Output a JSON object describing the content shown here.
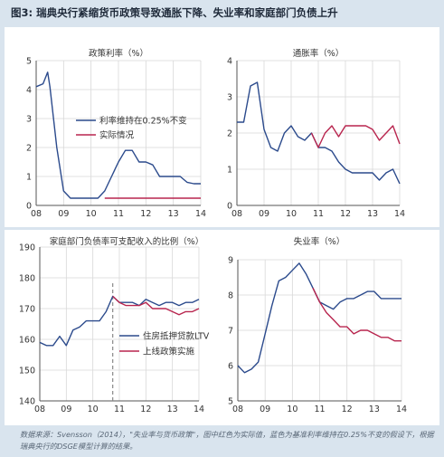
{
  "figure": {
    "title": "图3: 瑞典央行紧缩货币政策导致通胀下降、失业率和家庭部门负债上升",
    "source": "数据来源：Svensson（2014），\"失业率与货币政策\"，图中红色为实际值，蓝色为基准利率维持在0.25%不变的假设下，根据瑞典央行的DSGE模型计算的结果。"
  },
  "colors": {
    "blue": "#2b4a8c",
    "red": "#b8254e",
    "grid": "#d8d8d8",
    "axis": "#555555",
    "vline": "#888888"
  },
  "chart_data": [
    {
      "id": "policy-rate",
      "type": "line",
      "title": "政策利率（%）",
      "xlim": [
        8,
        14
      ],
      "xticks": [
        8,
        9,
        10,
        11,
        12,
        13,
        14
      ],
      "xtick_labels": [
        "08",
        "09",
        "10",
        "11",
        "12",
        "13",
        "14"
      ],
      "ylim": [
        0,
        5
      ],
      "yticks": [
        0,
        1,
        2,
        3,
        4,
        5
      ],
      "grid": true,
      "legend_position": "center",
      "series": [
        {
          "name": "利率维持在0.25%不变",
          "color": "blue",
          "x": [
            8.0,
            8.25,
            8.42,
            8.5,
            8.75,
            9.0,
            9.25,
            9.5,
            9.75,
            10.25,
            10.5,
            10.75,
            11.0,
            11.25,
            11.5,
            11.75,
            12.0,
            12.25,
            12.5,
            12.75,
            13.0,
            13.25,
            13.5,
            13.75,
            14.0
          ],
          "y": [
            4.1,
            4.2,
            4.6,
            4.1,
            2.0,
            0.5,
            0.25,
            0.25,
            0.25,
            0.25,
            0.5,
            1.0,
            1.5,
            1.9,
            1.9,
            1.5,
            1.5,
            1.4,
            1.0,
            1.0,
            1.0,
            1.0,
            0.8,
            0.75,
            0.75
          ]
        },
        {
          "name": "实际情况",
          "color": "red",
          "x": [
            10.5,
            14.0
          ],
          "y": [
            0.25,
            0.25
          ]
        }
      ]
    },
    {
      "id": "inflation",
      "type": "line",
      "title": "通胀率（%）",
      "xlim": [
        8,
        14
      ],
      "xticks": [
        8,
        9,
        10,
        11,
        12,
        13,
        14
      ],
      "xtick_labels": [
        "08",
        "09",
        "10",
        "11",
        "12",
        "13",
        "14"
      ],
      "ylim": [
        0,
        4
      ],
      "yticks": [
        0,
        1,
        2,
        3,
        4
      ],
      "grid": true,
      "series": [
        {
          "name": "",
          "color": "blue",
          "x": [
            8.0,
            8.25,
            8.5,
            8.75,
            9.0,
            9.25,
            9.5,
            9.75,
            10.0,
            10.25,
            10.5,
            10.75,
            11.0,
            11.25,
            11.5,
            11.75,
            12.0,
            12.25,
            12.5,
            12.75,
            13.0,
            13.25,
            13.5,
            13.75,
            14.0
          ],
          "y": [
            2.3,
            2.3,
            3.3,
            3.4,
            2.1,
            1.6,
            1.5,
            2.0,
            2.2,
            1.9,
            1.8,
            2.0,
            1.6,
            1.6,
            1.5,
            1.2,
            1.0,
            0.9,
            0.9,
            0.9,
            0.9,
            0.7,
            0.9,
            1.0,
            0.6
          ]
        },
        {
          "name": "",
          "color": "red",
          "x": [
            10.75,
            11.0,
            11.25,
            11.5,
            11.75,
            12.0,
            12.25,
            12.5,
            12.75,
            13.0,
            13.25,
            13.5,
            13.75,
            14.0
          ],
          "y": [
            2.0,
            1.6,
            2.0,
            2.2,
            1.9,
            2.2,
            2.2,
            2.2,
            2.2,
            2.1,
            1.8,
            2.0,
            2.2,
            1.7
          ]
        }
      ]
    },
    {
      "id": "household-debt",
      "type": "line",
      "title": "家庭部门负债率可支配收入的比例（%）",
      "xlim": [
        8,
        14
      ],
      "xticks": [
        8,
        9,
        10,
        11,
        12,
        13,
        14
      ],
      "xtick_labels": [
        "08",
        "09",
        "10",
        "11",
        "12",
        "13",
        "14"
      ],
      "ylim": [
        140,
        190
      ],
      "yticks": [
        140,
        150,
        160,
        170,
        180,
        190
      ],
      "grid": true,
      "vline": 10.75,
      "legend_position": "right",
      "series": [
        {
          "name": "住房抵押贷款LTV",
          "color": "blue",
          "x": [
            8.0,
            8.25,
            8.5,
            8.75,
            9.0,
            9.25,
            9.5,
            9.75,
            10.0,
            10.25,
            10.5,
            10.75,
            11.0,
            11.25,
            11.5,
            11.75,
            12.0,
            12.25,
            12.5,
            12.75,
            13.0,
            13.25,
            13.5,
            13.75,
            14.0
          ],
          "y": [
            159,
            158,
            158,
            161,
            158,
            163,
            164,
            166,
            166,
            166,
            169,
            174,
            172,
            172,
            172,
            171,
            173,
            172,
            171,
            172,
            172,
            171,
            172,
            172,
            173
          ]
        },
        {
          "name": "上线政策实施",
          "color": "red",
          "x": [
            10.75,
            11.0,
            11.25,
            11.5,
            11.75,
            12.0,
            12.25,
            12.5,
            12.75,
            13.0,
            13.25,
            13.5,
            13.75,
            14.0
          ],
          "y": [
            174,
            172,
            171,
            171,
            171,
            172,
            170,
            170,
            170,
            169,
            168,
            169,
            169,
            170
          ]
        }
      ]
    },
    {
      "id": "unemployment",
      "type": "line",
      "title": "失业率（%）",
      "xlim": [
        8,
        14
      ],
      "xticks": [
        8,
        9,
        10,
        11,
        12,
        13,
        14
      ],
      "xtick_labels": [
        "08",
        "09",
        "10",
        "11",
        "12",
        "13",
        "14"
      ],
      "ylim": [
        5,
        9
      ],
      "yticks": [
        5,
        6,
        7,
        8,
        9
      ],
      "grid": true,
      "series": [
        {
          "name": "",
          "color": "blue",
          "x": [
            8.0,
            8.25,
            8.5,
            8.75,
            9.0,
            9.25,
            9.5,
            9.75,
            10.0,
            10.25,
            10.5,
            10.75,
            11.0,
            11.25,
            11.5,
            11.75,
            12.0,
            12.25,
            12.5,
            12.75,
            13.0,
            13.25,
            13.5,
            13.75,
            14.0
          ],
          "y": [
            6.0,
            5.8,
            5.9,
            6.1,
            6.9,
            7.7,
            8.4,
            8.5,
            8.7,
            8.9,
            8.6,
            8.2,
            7.8,
            7.7,
            7.6,
            7.8,
            7.9,
            7.9,
            8.0,
            8.1,
            8.1,
            7.9,
            7.9,
            7.9,
            7.9
          ]
        },
        {
          "name": "",
          "color": "red",
          "x": [
            10.75,
            11.0,
            11.25,
            11.5,
            11.75,
            12.0,
            12.25,
            12.5,
            12.75,
            13.0,
            13.25,
            13.5,
            13.75,
            14.0
          ],
          "y": [
            8.2,
            7.8,
            7.5,
            7.3,
            7.1,
            7.1,
            6.9,
            7.0,
            7.0,
            6.9,
            6.8,
            6.8,
            6.7,
            6.7
          ]
        }
      ]
    }
  ]
}
